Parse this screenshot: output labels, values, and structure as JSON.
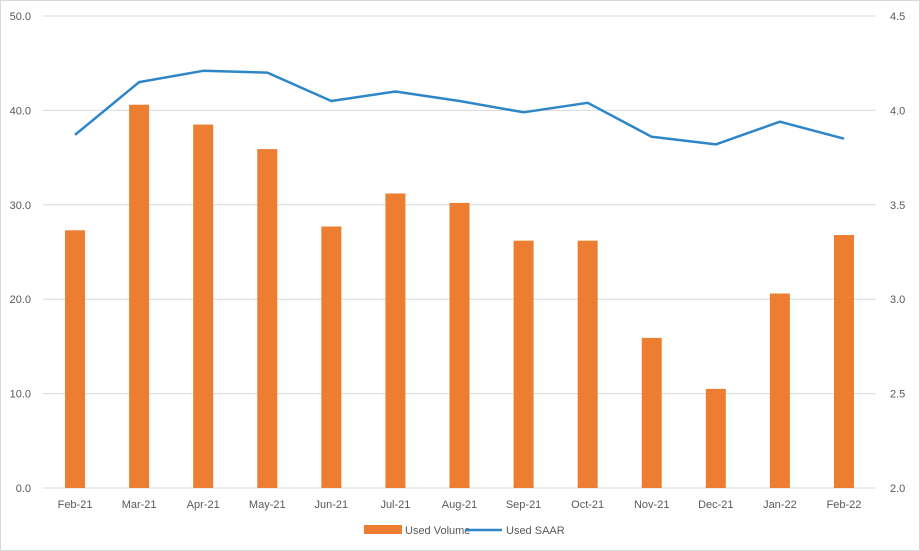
{
  "chart_data": {
    "type": "bar",
    "title": "",
    "categories": [
      "Feb-21",
      "Mar-21",
      "Apr-21",
      "May-21",
      "Jun-21",
      "Jul-21",
      "Aug-21",
      "Sep-21",
      "Oct-21",
      "Nov-21",
      "Dec-21",
      "Jan-22",
      "Feb-22"
    ],
    "series": [
      {
        "name": "Used Volume",
        "type": "bar",
        "axis": "left",
        "color": "#ED7D31",
        "values": [
          27.3,
          40.6,
          38.5,
          35.9,
          27.7,
          31.2,
          30.2,
          26.2,
          26.2,
          15.9,
          10.5,
          20.6,
          26.8
        ]
      },
      {
        "name": "Used SAAR",
        "type": "line",
        "axis": "right",
        "color": "#2E86C8",
        "values": [
          3.87,
          4.15,
          4.21,
          4.2,
          4.05,
          4.1,
          4.05,
          3.99,
          4.04,
          3.86,
          3.82,
          3.94,
          3.85
        ]
      }
    ],
    "y_left": {
      "ticks": [
        "0.0",
        "10.0",
        "20.0",
        "30.0",
        "40.0",
        "50.0"
      ],
      "range": [
        0,
        50
      ]
    },
    "y_right": {
      "ticks": [
        "2.0",
        "2.5",
        "3.0",
        "3.5",
        "4.0",
        "4.5"
      ],
      "range": [
        2.0,
        4.5
      ]
    },
    "grid": true,
    "legend_position": "bottom-center"
  }
}
